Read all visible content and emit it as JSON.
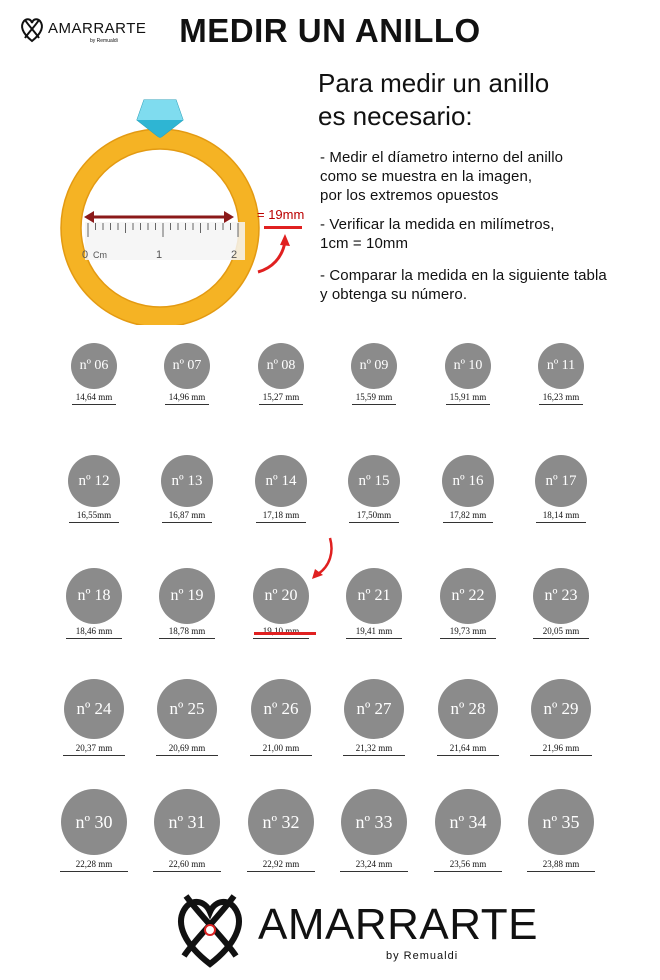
{
  "brand": {
    "name": "AMARRARTE",
    "byline": "by Remualdi"
  },
  "title": "MEDIR UN ANILLO",
  "instructions": {
    "heading_line1": "Para medir un anillo",
    "heading_line2": "es necesario:",
    "steps": [
      [
        "- Medir el díametro interno del anillo",
        "como se muestra en la imagen,",
        "por los extremos opuestos"
      ],
      [
        "- Verificar la medida en milímetros,",
        "1cm = 10mm"
      ],
      [
        "- Comparar la medida en la siguiente tabla",
        "y obtenga su número."
      ]
    ]
  },
  "illustration": {
    "measurement": "= 19mm",
    "ruler_labels": [
      "0",
      "Cm",
      "1",
      "2"
    ]
  },
  "sizes": [
    {
      "label": "nº 06",
      "mm": "14,64 mm"
    },
    {
      "label": "nº 07",
      "mm": "14,96 mm"
    },
    {
      "label": "nº 08",
      "mm": "15,27 mm"
    },
    {
      "label": "nº 09",
      "mm": "15,59 mm"
    },
    {
      "label": "nº 10",
      "mm": "15,91 mm"
    },
    {
      "label": "nº 11",
      "mm": "16,23 mm"
    },
    {
      "label": "nº 12",
      "mm": "16,55mm"
    },
    {
      "label": "nº 13",
      "mm": "16,87 mm"
    },
    {
      "label": "nº 14",
      "mm": "17,18 mm"
    },
    {
      "label": "nº 15",
      "mm": "17,50mm"
    },
    {
      "label": "nº 16",
      "mm": "17,82 mm"
    },
    {
      "label": "nº 17",
      "mm": "18,14 mm"
    },
    {
      "label": "nº 18",
      "mm": "18,46 mm"
    },
    {
      "label": "nº 19",
      "mm": "18,78 mm"
    },
    {
      "label": "nº 20",
      "mm": "19,10 mm"
    },
    {
      "label": "nº 21",
      "mm": "19,41 mm"
    },
    {
      "label": "nº 22",
      "mm": "19,73 mm"
    },
    {
      "label": "nº 23",
      "mm": "20,05 mm"
    },
    {
      "label": "nº 24",
      "mm": "20,37 mm"
    },
    {
      "label": "nº 25",
      "mm": "20,69 mm"
    },
    {
      "label": "nº 26",
      "mm": "21,00 mm"
    },
    {
      "label": "nº 27",
      "mm": "21,32 mm"
    },
    {
      "label": "nº 28",
      "mm": "21,64 mm"
    },
    {
      "label": "nº 29",
      "mm": "21,96 mm"
    },
    {
      "label": "nº 30",
      "mm": "22,28 mm"
    },
    {
      "label": "nº 31",
      "mm": "22,60 mm"
    },
    {
      "label": "nº 32",
      "mm": "22,92 mm"
    },
    {
      "label": "nº 33",
      "mm": "23,24 mm"
    },
    {
      "label": "nº 34",
      "mm": "23,56 mm"
    },
    {
      "label": "nº 35",
      "mm": "23,88 mm"
    }
  ],
  "highlighted_size": "nº 20",
  "colors": {
    "accent": "#e02020",
    "ring_gold": "#f5b324",
    "diamond": "#4fc8e0",
    "circle": "#8b8b8b",
    "arrow": "#8b1a1a"
  }
}
